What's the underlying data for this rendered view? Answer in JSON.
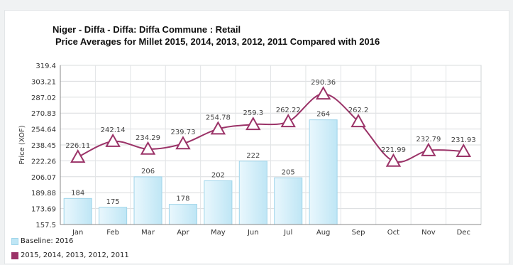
{
  "chart_data": {
    "type": "bar",
    "title": "Niger - Diffa - Diffa: Diffa Commune : Retail",
    "subtitle": "Price Averages for Millet 2015, 2014, 2013, 2012, 2011 Compared with 2016",
    "ylabel": "Price (XOF)",
    "xlabel": "",
    "ylim": [
      157.5,
      319.4
    ],
    "yticks": [
      "319.4",
      "303.21",
      "287.02",
      "270.83",
      "254.64",
      "238.45",
      "222.26",
      "206.07",
      "189.88",
      "173.69",
      "157.5"
    ],
    "categories": [
      "Jan",
      "Feb",
      "Mar",
      "Apr",
      "May",
      "Jun",
      "Jul",
      "Aug",
      "Sep",
      "Oct",
      "Nov",
      "Dec"
    ],
    "grid": true,
    "legend_position": "bottom-left",
    "series": [
      {
        "name": "Baseline: 2016",
        "type": "bar",
        "color": "#bfe6f5",
        "values": [
          184,
          175,
          206,
          178,
          202,
          222,
          205,
          264,
          null,
          null,
          null,
          null
        ],
        "labels": [
          "184",
          "175",
          "206",
          "178",
          "202",
          "222",
          "205",
          "264",
          "",
          "",
          "",
          ""
        ]
      },
      {
        "name": "2015, 2014, 2013, 2012, 2011",
        "type": "line",
        "marker": "triangle",
        "color": "#9b3368",
        "values": [
          226.11,
          242.14,
          234.29,
          239.73,
          254.78,
          259.3,
          262.22,
          290.36,
          262.2,
          221.99,
          232.79,
          231.93
        ],
        "labels": [
          "226.11",
          "242.14",
          "234.29",
          "239.73",
          "254.78",
          "259.3",
          "262.22",
          "290.36",
          "262.2",
          "221.99",
          "232.79",
          "231.93"
        ]
      }
    ]
  }
}
